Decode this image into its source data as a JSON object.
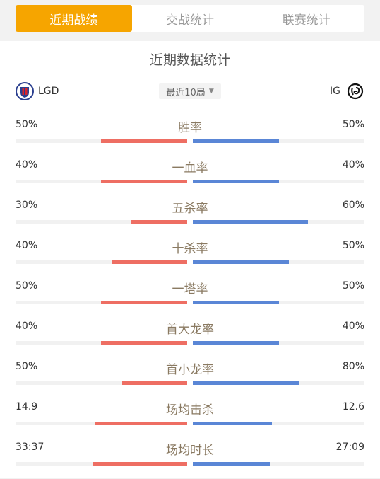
{
  "tabs": [
    {
      "label": "近期战绩",
      "active": true
    },
    {
      "label": "交战统计",
      "active": false
    },
    {
      "label": "联赛统计",
      "active": false
    }
  ],
  "section_title": "近期数据统计",
  "team_left": {
    "name": "LGD",
    "icon": "lgd-logo-icon"
  },
  "team_right": {
    "name": "IG",
    "icon": "ig-logo-icon"
  },
  "filter": {
    "label": "最近10局",
    "icon": "caret-down-icon"
  },
  "colors": {
    "accent": "#f6a500",
    "left_bar": "#ee6e63",
    "right_bar": "#5a86d6"
  },
  "stats": [
    {
      "label": "胜率",
      "left": "50%",
      "right": "50%",
      "left_fill": 0.5,
      "right_fill": 0.5
    },
    {
      "label": "一血率",
      "left": "40%",
      "right": "40%",
      "left_fill": 0.5,
      "right_fill": 0.5
    },
    {
      "label": "五杀率",
      "left": "30%",
      "right": "60%",
      "left_fill": 0.33,
      "right_fill": 0.67
    },
    {
      "label": "十杀率",
      "left": "40%",
      "right": "50%",
      "left_fill": 0.44,
      "right_fill": 0.56
    },
    {
      "label": "一塔率",
      "left": "50%",
      "right": "50%",
      "left_fill": 0.5,
      "right_fill": 0.5
    },
    {
      "label": "首大龙率",
      "left": "40%",
      "right": "40%",
      "left_fill": 0.5,
      "right_fill": 0.5
    },
    {
      "label": "首小龙率",
      "left": "50%",
      "right": "80%",
      "left_fill": 0.38,
      "right_fill": 0.62
    },
    {
      "label": "场均击杀",
      "left": "14.9",
      "right": "12.6",
      "left_fill": 0.54,
      "right_fill": 0.46
    },
    {
      "label": "场均时长",
      "left": "33:37",
      "right": "27:09",
      "left_fill": 0.55,
      "right_fill": 0.45
    }
  ]
}
